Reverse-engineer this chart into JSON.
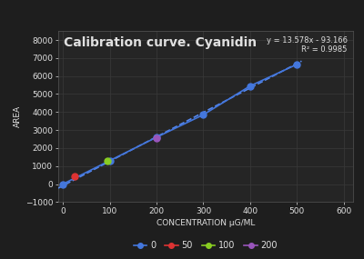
{
  "title": "Calibration curve. Cyanidin",
  "xlabel": "CONCENTRATION µG/ML",
  "ylabel": "AREA",
  "background_color": "#1e1e1e",
  "plot_bg_color": "#252525",
  "grid_color": "#3a3a3a",
  "text_color": "#e0e0e0",
  "equation_text": "y = 13.578x - 93.166\nR² = 0.9985",
  "xlim": [
    -10,
    620
  ],
  "ylim": [
    -1000,
    8500
  ],
  "xticks": [
    0,
    100,
    200,
    300,
    400,
    500,
    600
  ],
  "yticks": [
    -1000,
    0,
    1000,
    2000,
    3000,
    4000,
    5000,
    6000,
    7000,
    8000
  ],
  "series": [
    {
      "label": "0",
      "color": "#4477dd",
      "marker": "o",
      "points": [
        [
          0,
          0
        ],
        [
          100,
          1300
        ],
        [
          200,
          2600
        ],
        [
          300,
          3850
        ],
        [
          400,
          5450
        ],
        [
          500,
          6650
        ]
      ]
    },
    {
      "label": "50",
      "color": "#dd3333",
      "marker": "o",
      "points": [
        [
          25,
          420
        ]
      ]
    },
    {
      "label": "100",
      "color": "#88cc22",
      "marker": "o",
      "points": [
        [
          95,
          1280
        ]
      ]
    },
    {
      "label": "200",
      "color": "#9955bb",
      "marker": "o",
      "points": [
        [
          200,
          2560
        ]
      ]
    }
  ],
  "trendline_color": "#5588ee",
  "trendline_style": "--",
  "trendline_slope": 13.578,
  "trendline_intercept": -93.166,
  "trendline_x": [
    -10,
    510
  ]
}
